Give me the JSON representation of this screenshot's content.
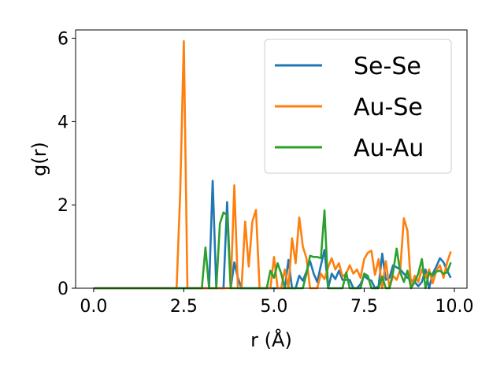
{
  "chart_data": {
    "type": "line",
    "xlabel": "r (Å)",
    "ylabel": "g(r)",
    "xlim": [
      -0.5,
      10.35
    ],
    "ylim": [
      0,
      6.2
    ],
    "xticks": [
      0.0,
      2.5,
      5.0,
      7.5,
      10.0
    ],
    "xtick_labels": [
      "0.0",
      "2.5",
      "5.0",
      "7.5",
      "10.0"
    ],
    "yticks": [
      0,
      2,
      4,
      6
    ],
    "ytick_labels": [
      "0",
      "2",
      "4",
      "6"
    ],
    "grid": false,
    "legend": "top-right",
    "series": [
      {
        "name": "Se-Se",
        "color": "#1f77b4",
        "x": [
          0.0,
          3.1,
          3.2,
          3.3,
          3.4,
          3.5,
          3.6,
          3.7,
          3.8,
          3.9,
          4.0,
          4.1,
          5.0,
          5.1,
          5.2,
          5.3,
          5.4,
          5.5,
          5.6,
          5.7,
          5.8,
          5.9,
          6.0,
          6.1,
          6.2,
          6.3,
          6.4,
          6.5,
          6.6,
          6.7,
          6.8,
          6.9,
          7.0,
          7.1,
          7.2,
          7.3,
          7.4,
          7.5,
          7.6,
          7.7,
          7.8,
          7.9,
          8.0,
          8.1,
          8.2,
          8.3,
          8.4,
          8.5,
          8.6,
          8.7,
          8.8,
          8.9,
          9.0,
          9.1,
          9.2,
          9.3,
          9.4,
          9.5,
          9.6,
          9.7,
          9.8,
          9.9
        ],
        "y": [
          0.0,
          0.0,
          0.0,
          2.58,
          0.0,
          0.0,
          0.0,
          2.07,
          0.0,
          0.62,
          0.25,
          0.0,
          0.0,
          0.0,
          0.0,
          0.0,
          0.68,
          0.0,
          0.0,
          0.3,
          0.18,
          0.4,
          0.65,
          0.35,
          0.15,
          0.55,
          0.92,
          0.0,
          0.35,
          0.22,
          0.42,
          0.2,
          0.2,
          0.2,
          0.0,
          0.0,
          0.1,
          0.3,
          0.22,
          0.18,
          0.0,
          0.05,
          0.83,
          0.2,
          0.25,
          0.55,
          0.5,
          0.45,
          0.35,
          0.25,
          0.2,
          0.15,
          0.05,
          0.15,
          0.45,
          0.0,
          0.35,
          0.52,
          0.72,
          0.62,
          0.42,
          0.25
        ]
      },
      {
        "name": "Au-Se",
        "color": "#ff7f0e",
        "x": [
          0.0,
          2.3,
          2.4,
          2.5,
          2.6,
          2.7,
          3.7,
          3.8,
          3.9,
          4.0,
          4.1,
          4.2,
          4.3,
          4.4,
          4.5,
          4.6,
          4.7,
          4.8,
          4.9,
          5.0,
          5.1,
          5.2,
          5.3,
          5.4,
          5.5,
          5.6,
          5.7,
          5.8,
          5.9,
          6.0,
          6.1,
          6.2,
          6.3,
          6.4,
          6.5,
          6.6,
          6.7,
          6.8,
          6.9,
          7.0,
          7.1,
          7.2,
          7.3,
          7.4,
          7.5,
          7.6,
          7.7,
          7.8,
          7.9,
          8.0,
          8.1,
          8.2,
          8.3,
          8.4,
          8.5,
          8.6,
          8.7,
          8.8,
          8.9,
          9.0,
          9.1,
          9.2,
          9.3,
          9.4,
          9.5,
          9.6,
          9.7,
          9.8,
          9.9
        ],
        "y": [
          0.0,
          0.0,
          2.3,
          5.93,
          0.0,
          0.0,
          0.0,
          0.0,
          2.47,
          0.0,
          0.0,
          1.6,
          0.52,
          1.6,
          1.88,
          0.0,
          0.0,
          0.0,
          0.0,
          0.75,
          0.0,
          0.0,
          0.45,
          0.0,
          1.2,
          0.6,
          1.7,
          1.0,
          0.72,
          0.0,
          0.0,
          0.0,
          0.35,
          0.22,
          0.5,
          0.72,
          0.45,
          0.6,
          0.28,
          0.35,
          0.55,
          0.35,
          0.45,
          0.25,
          0.7,
          0.85,
          0.9,
          0.32,
          0.7,
          0.0,
          0.65,
          0.0,
          0.3,
          0.2,
          0.45,
          1.68,
          1.38,
          0.0,
          0.3,
          0.15,
          0.45,
          0.25,
          0.45,
          0.12,
          0.42,
          0.55,
          0.25,
          0.62,
          0.88
        ]
      },
      {
        "name": "Au-Au",
        "color": "#2ca02c",
        "x": [
          0.0,
          3.0,
          3.1,
          3.2,
          3.3,
          3.4,
          3.5,
          3.6,
          3.7,
          3.8,
          4.8,
          4.9,
          5.0,
          5.1,
          5.2,
          5.3,
          5.4,
          5.5,
          5.6,
          5.7,
          5.8,
          5.9,
          6.0,
          6.1,
          6.2,
          6.3,
          6.4,
          6.5,
          6.6,
          6.7,
          6.8,
          6.9,
          7.0,
          7.1,
          7.2,
          7.3,
          7.4,
          7.5,
          7.6,
          7.7,
          7.8,
          7.9,
          8.0,
          8.1,
          8.2,
          8.3,
          8.4,
          8.5,
          8.6,
          8.7,
          8.8,
          8.9,
          9.0,
          9.1,
          9.2,
          9.3,
          9.4,
          9.5,
          9.6,
          9.7,
          9.8,
          9.9
        ],
        "y": [
          0.0,
          0.0,
          0.98,
          0.0,
          0.0,
          0.0,
          1.55,
          1.82,
          1.75,
          0.0,
          0.0,
          0.42,
          0.25,
          0.6,
          0.35,
          0.0,
          0.0,
          0.0,
          0.0,
          0.0,
          0.0,
          0.35,
          0.78,
          0.75,
          0.75,
          0.72,
          1.87,
          0.0,
          0.0,
          0.0,
          0.0,
          0.0,
          0.38,
          0.0,
          0.0,
          0.0,
          0.0,
          0.35,
          0.3,
          0.0,
          0.0,
          0.0,
          0.28,
          0.0,
          0.0,
          0.38,
          0.95,
          0.38,
          0.15,
          0.42,
          0.0,
          0.15,
          0.35,
          0.7,
          0.0,
          0.38,
          0.3,
          0.4,
          0.42,
          0.35,
          0.38,
          0.62
        ]
      }
    ]
  }
}
